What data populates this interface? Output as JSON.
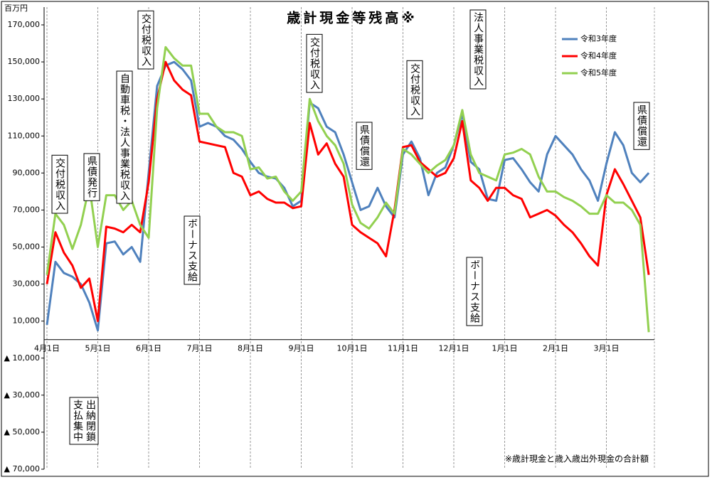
{
  "chart_data": {
    "type": "line",
    "title": "歳計現金等残高※",
    "y_unit": "百万円",
    "footnote": "※歳計現金と歳入歳出外現金の合計額",
    "categories": [
      "4月1日",
      null,
      null,
      null,
      null,
      null,
      "5月1日",
      null,
      null,
      null,
      null,
      null,
      "6月1日",
      null,
      null,
      null,
      null,
      null,
      "7月1日",
      null,
      null,
      null,
      null,
      null,
      "8月1日",
      null,
      null,
      null,
      null,
      null,
      "9月1日",
      null,
      null,
      null,
      null,
      null,
      "10月1日",
      null,
      null,
      null,
      null,
      null,
      "11月1日",
      null,
      null,
      null,
      null,
      null,
      "12月1日",
      null,
      null,
      null,
      null,
      null,
      "1月1日",
      null,
      null,
      null,
      null,
      null,
      "2月1日",
      null,
      null,
      null,
      null,
      null,
      "3月1日",
      null,
      null,
      null,
      null,
      null
    ],
    "series": [
      {
        "name": "令和3年度",
        "color": "#4f81bd",
        "values": [
          8000,
          42000,
          36000,
          34000,
          30000,
          20000,
          5000,
          52000,
          53000,
          46000,
          50000,
          42000,
          90000,
          137000,
          148000,
          150000,
          146000,
          140000,
          115000,
          117000,
          115000,
          110000,
          108000,
          103000,
          96000,
          90000,
          88000,
          87000,
          82000,
          72000,
          75000,
          128000,
          125000,
          115000,
          112000,
          100000,
          85000,
          70000,
          72000,
          82000,
          72000,
          66000,
          100000,
          107000,
          98000,
          78000,
          90000,
          93000,
          105000,
          122000,
          96000,
          92000,
          76000,
          75000,
          97000,
          98000,
          92000,
          85000,
          80000,
          100000,
          110000,
          105000,
          100000,
          92000,
          86000,
          75000,
          95000,
          112000,
          105000,
          90000,
          85000,
          90000
        ]
      },
      {
        "name": "令和4年度",
        "color": "#ff0000",
        "values": [
          30000,
          58000,
          47000,
          40000,
          28000,
          33000,
          10000,
          61000,
          60000,
          58000,
          62000,
          58000,
          85000,
          130000,
          150000,
          140000,
          135000,
          132000,
          107000,
          106000,
          105000,
          104000,
          90000,
          88000,
          78000,
          80000,
          76000,
          74000,
          74000,
          71000,
          72000,
          117000,
          100000,
          106000,
          95000,
          88000,
          62000,
          58000,
          55000,
          52000,
          45000,
          70000,
          104000,
          105000,
          96000,
          92000,
          88000,
          90000,
          98000,
          118000,
          86000,
          82000,
          75000,
          82000,
          82000,
          78000,
          76000,
          66000,
          68000,
          70000,
          67000,
          62000,
          58000,
          52000,
          45000,
          40000,
          78000,
          92000,
          84000,
          75000,
          66000,
          35000
        ]
      },
      {
        "name": "令和5年度",
        "color": "#92d050",
        "values": [
          35000,
          68000,
          62000,
          49000,
          62000,
          83000,
          50000,
          78000,
          78000,
          70000,
          75000,
          62000,
          55000,
          125000,
          158000,
          152000,
          148000,
          148000,
          122000,
          122000,
          115000,
          112000,
          112000,
          110000,
          92000,
          93000,
          87000,
          88000,
          80000,
          75000,
          80000,
          130000,
          118000,
          110000,
          105000,
          95000,
          73000,
          63000,
          60000,
          66000,
          74000,
          68000,
          103000,
          100000,
          95000,
          90000,
          94000,
          97000,
          105000,
          124000,
          100000,
          90000,
          88000,
          86000,
          100000,
          101000,
          103000,
          100000,
          88000,
          80000,
          80000,
          77000,
          75000,
          72000,
          68000,
          68000,
          78000,
          74000,
          74000,
          70000,
          62000,
          4000
        ]
      }
    ],
    "ylim": [
      -70000,
      170000
    ],
    "yticks": [
      {
        "value": 170000,
        "label": "170,000"
      },
      {
        "value": 150000,
        "label": "150,000"
      },
      {
        "value": 130000,
        "label": "130,000"
      },
      {
        "value": 110000,
        "label": "110,000"
      },
      {
        "value": 90000,
        "label": "90,000"
      },
      {
        "value": 70000,
        "label": "70,000"
      },
      {
        "value": 50000,
        "label": "50,000"
      },
      {
        "value": 30000,
        "label": "30,000"
      },
      {
        "value": 10000,
        "label": "10,000"
      },
      {
        "value": -10000,
        "label": "▲ 10,000"
      },
      {
        "value": -30000,
        "label": "▲ 30,000"
      },
      {
        "value": -50000,
        "label": "▲ 50,000"
      },
      {
        "value": -70000,
        "label": "▲ 70,000"
      }
    ],
    "legend": "top-right",
    "annotations": [
      [
        "交付税収入"
      ],
      [
        "県債発行"
      ],
      [
        "自動車税・法人事業税収入"
      ],
      [
        "交付税収入"
      ],
      [
        "ボーナス支給"
      ],
      [
        "交付税収入"
      ],
      [
        "県債償還"
      ],
      [
        "交付税収入"
      ],
      [
        "法人事業税収入"
      ],
      [
        "ボーナス支給"
      ],
      [
        "県債償還"
      ],
      [
        "出納閉鎖",
        "支払集中"
      ]
    ]
  }
}
